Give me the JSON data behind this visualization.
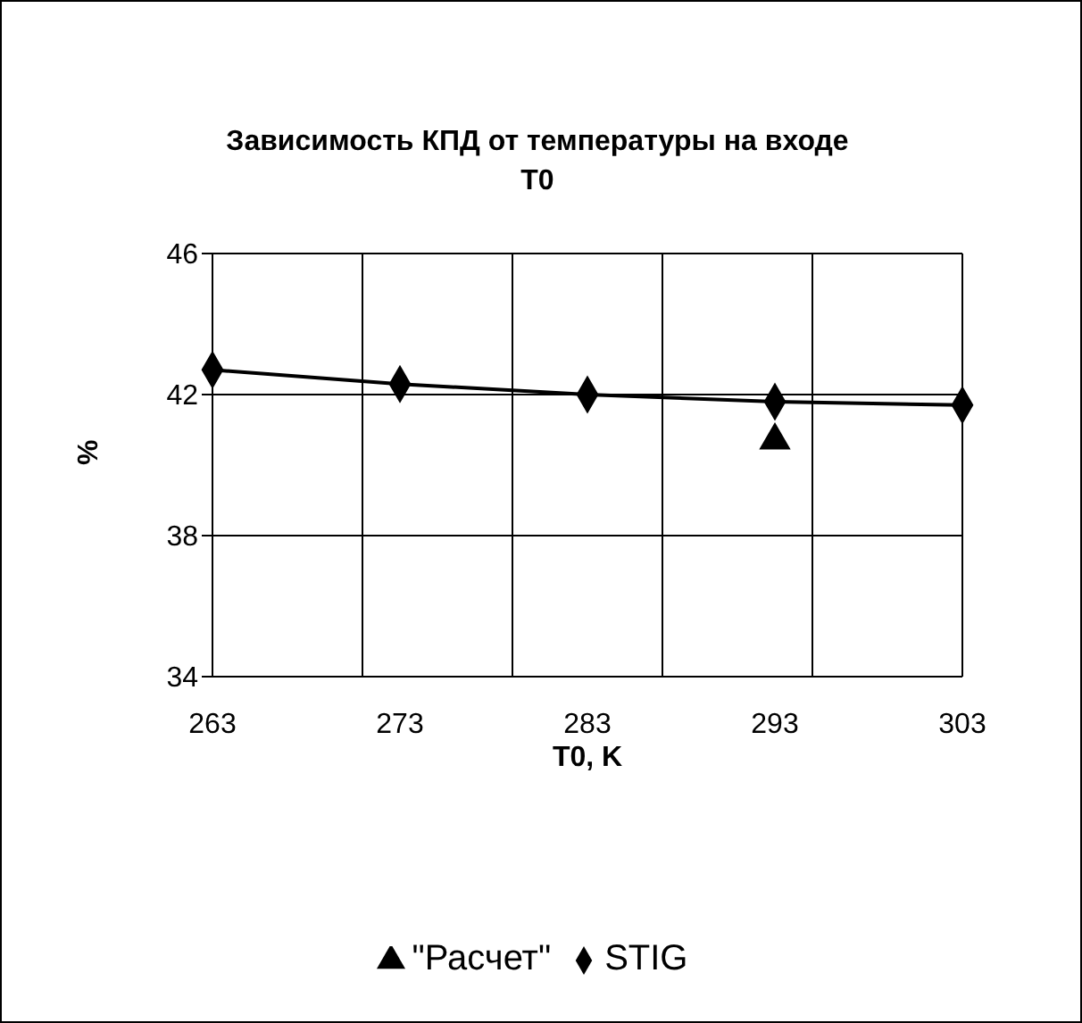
{
  "chart_data": {
    "type": "line",
    "title": "Зависимость КПД от температуры на входе T0",
    "xlabel": "T0, K",
    "ylabel": "%",
    "categories": [
      "263",
      "273",
      "283",
      "293",
      "303"
    ],
    "series": [
      {
        "name": "STIG",
        "color": "#000000",
        "marker": "diamond",
        "values": [
          42.7,
          42.3,
          42.0,
          41.8,
          41.7
        ]
      },
      {
        "name": "\"Расчет\"",
        "color": "#000000",
        "marker": "triangle",
        "values": [
          null,
          null,
          null,
          40.7,
          null
        ]
      }
    ],
    "ylim": [
      34,
      46
    ],
    "yticks": [
      34,
      38,
      42,
      46
    ],
    "grid": true,
    "legend": "bottom",
    "line_style": "solid"
  }
}
